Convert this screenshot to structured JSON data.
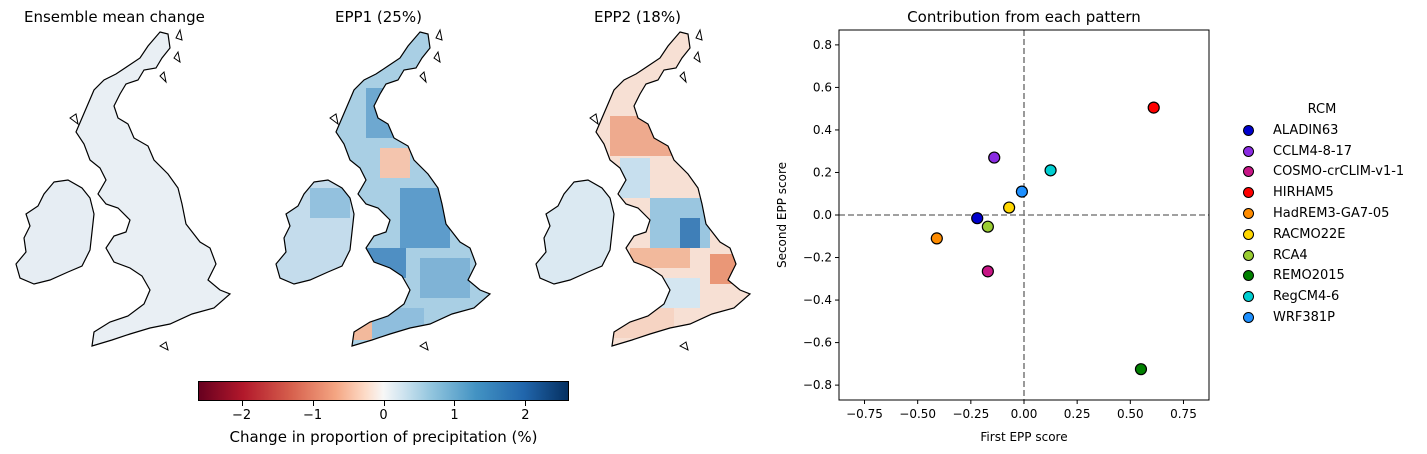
{
  "maps": {
    "titles": [
      "Ensemble mean change",
      "EPP1 (25%)",
      "EPP2 (18%)"
    ]
  },
  "colorbar": {
    "label": "Change in proportion of precipitation (%)",
    "ticks": [
      "−2",
      "−1",
      "0",
      "1",
      "2"
    ],
    "range": [
      -2.6,
      2.6
    ],
    "tick_values": [
      -2,
      -1,
      0,
      1,
      2
    ],
    "colormap": "RdBu"
  },
  "chart_data": {
    "type": "scatter",
    "title": "Contribution from each pattern",
    "xlabel": "First EPP score",
    "ylabel": "Second EPP score",
    "xlim": [
      -0.87,
      0.87
    ],
    "ylim": [
      -0.87,
      0.87
    ],
    "xticks": [
      -0.75,
      -0.5,
      -0.25,
      0.0,
      0.25,
      0.5,
      0.75
    ],
    "xtick_labels": [
      "−0.75",
      "−0.50",
      "−0.25",
      "0.00",
      "0.25",
      "0.50",
      "0.75"
    ],
    "yticks": [
      -0.8,
      -0.6,
      -0.4,
      -0.2,
      0.0,
      0.2,
      0.4,
      0.6,
      0.8
    ],
    "ytick_labels": [
      "−0.8",
      "−0.6",
      "−0.4",
      "−0.2",
      "0.0",
      "0.2",
      "0.4",
      "0.6",
      "0.8"
    ],
    "reference_lines": {
      "x": 0,
      "y": 0,
      "style": "dashed"
    },
    "legend": {
      "title": "RCM",
      "placement": "right, outside"
    },
    "series": [
      {
        "name": "ALADIN63",
        "x": -0.22,
        "y": -0.015,
        "color": "#0000cd"
      },
      {
        "name": "CCLM4-8-17",
        "x": -0.14,
        "y": 0.27,
        "color": "#8a2be2"
      },
      {
        "name": "COSMO-crCLIM-v1-1",
        "x": -0.17,
        "y": -0.265,
        "color": "#c71585"
      },
      {
        "name": "HIRHAM5",
        "x": 0.61,
        "y": 0.505,
        "color": "#ff0000"
      },
      {
        "name": "HadREM3-GA7-05",
        "x": -0.41,
        "y": -0.11,
        "color": "#ff8c00"
      },
      {
        "name": "RACMO22E",
        "x": -0.07,
        "y": 0.035,
        "color": "#ffd700"
      },
      {
        "name": "RCA4",
        "x": -0.17,
        "y": -0.055,
        "color": "#9acd32"
      },
      {
        "name": "REMO2015",
        "x": 0.55,
        "y": -0.725,
        "color": "#008000"
      },
      {
        "name": "RegCM4-6",
        "x": 0.125,
        "y": 0.21,
        "color": "#00ced1"
      },
      {
        "name": "WRF381P",
        "x": -0.01,
        "y": 0.11,
        "color": "#1e90ff"
      }
    ]
  }
}
